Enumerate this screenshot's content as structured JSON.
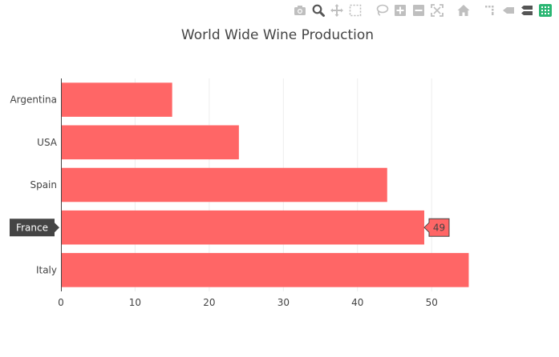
{
  "colors": {
    "bar": "#ff6666",
    "grid": "#eeeeee",
    "axis_line": "#444444",
    "modebar_icon": "#bfbfbf",
    "modebar_icon_active": "#555555",
    "brand_icon": "#2bb673",
    "hover_label_bg": "#444444",
    "hover_label_text": "#ffffff"
  },
  "modebar": {
    "buttons": [
      {
        "icon": "camera-icon",
        "label": "Download plot as a png"
      },
      {
        "icon": "zoom-icon",
        "label": "Zoom",
        "active": true
      },
      {
        "icon": "pan-icon",
        "label": "Pan"
      },
      {
        "icon": "box-select-icon",
        "label": "Box Select"
      },
      {
        "icon": "lasso-select-icon",
        "label": "Lasso Select"
      },
      {
        "icon": "zoom-in-icon",
        "label": "Zoom in"
      },
      {
        "icon": "zoom-out-icon",
        "label": "Zoom out"
      },
      {
        "icon": "autoscale-icon",
        "label": "Autoscale"
      },
      {
        "icon": "home-icon",
        "label": "Reset axes"
      },
      {
        "icon": "spikelines-icon",
        "label": "Toggle Spike Lines"
      },
      {
        "icon": "hover-closest-icon",
        "label": "Show closest data on hover"
      },
      {
        "icon": "hover-compare-icon",
        "label": "Compare data on hover",
        "active": true
      },
      {
        "icon": "plotly-logo-icon",
        "label": "Produced with Plotly"
      }
    ]
  },
  "chart_data": {
    "type": "bar",
    "orientation": "horizontal",
    "title": "World Wide Wine Production",
    "categories": [
      "Italy",
      "France",
      "Spain",
      "USA",
      "Argentina"
    ],
    "values": [
      55,
      49,
      44,
      24,
      15
    ],
    "xlim": [
      0,
      55.6
    ],
    "xticks": [
      0,
      10,
      20,
      30,
      40,
      50
    ],
    "xgrid": true,
    "hover": {
      "category": "France",
      "value": "49"
    }
  }
}
